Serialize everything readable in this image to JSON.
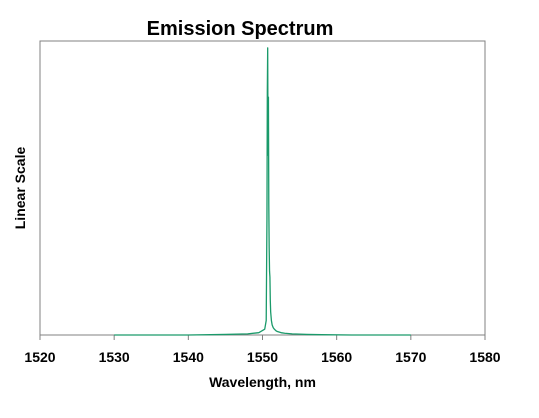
{
  "chart_data": {
    "type": "line",
    "title": "Emission Spectrum",
    "xlabel": "Wavelength, nm",
    "ylabel": "Linear Scale",
    "xlim": [
      1520,
      1580
    ],
    "ylim": [
      0,
      1
    ],
    "x_ticks": [
      1520,
      1530,
      1540,
      1550,
      1560,
      1570,
      1580
    ],
    "y_ticks_shown": false,
    "grid": false,
    "legend": "none",
    "series": [
      {
        "color": "#1a9a6a",
        "x": [
          1530.0,
          1540.0,
          1545.0,
          1548.0,
          1549.5,
          1550.3,
          1550.5,
          1550.6,
          1550.65,
          1550.7,
          1550.75,
          1550.8,
          1550.85,
          1550.9,
          1550.95,
          1551.0,
          1551.05,
          1551.1,
          1551.2,
          1551.3,
          1551.45,
          1551.6,
          1551.8,
          1552.0,
          1552.5,
          1553.0,
          1554.0,
          1555.0,
          1556.0,
          1558.0,
          1562.0,
          1570.0
        ],
        "y": [
          0.0,
          0.0,
          0.002,
          0.004,
          0.008,
          0.02,
          0.05,
          0.4,
          0.84,
          0.99,
          0.62,
          0.82,
          0.45,
          0.3,
          0.22,
          0.2,
          0.12,
          0.08,
          0.05,
          0.035,
          0.025,
          0.02,
          0.015,
          0.012,
          0.008,
          0.006,
          0.004,
          0.003,
          0.002,
          0.001,
          0.0,
          0.0
        ]
      }
    ]
  }
}
